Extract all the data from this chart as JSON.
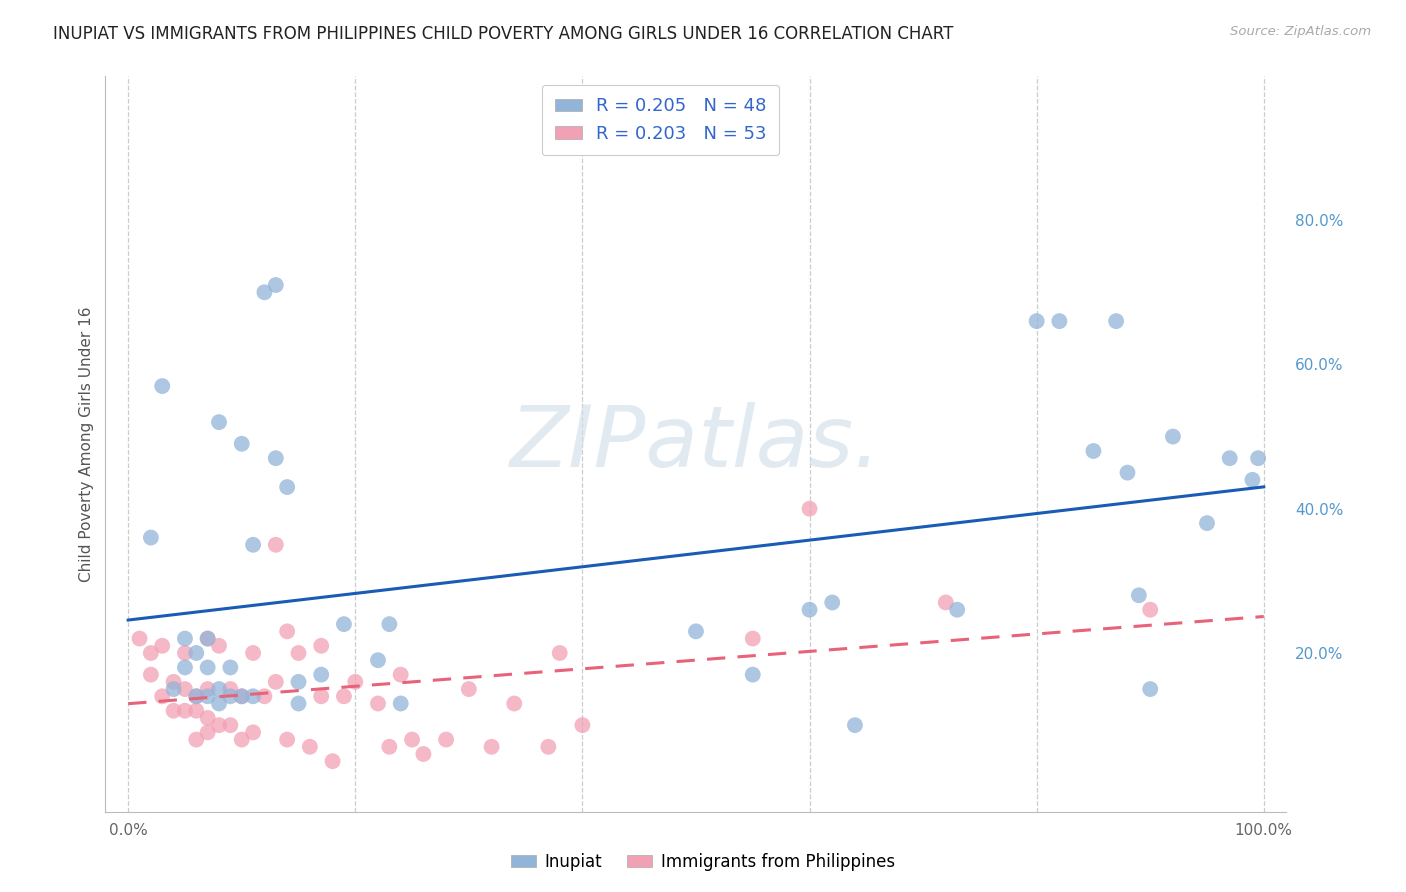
{
  "title": "INUPIAT VS IMMIGRANTS FROM PHILIPPINES CHILD POVERTY AMONG GIRLS UNDER 16 CORRELATION CHART",
  "source": "Source: ZipAtlas.com",
  "ylabel": "Child Poverty Among Girls Under 16",
  "xlim": [
    -0.02,
    1.02
  ],
  "ylim": [
    -0.02,
    1.0
  ],
  "xticks": [
    0.0,
    0.2,
    0.4,
    0.6,
    0.8,
    1.0
  ],
  "yticks": [],
  "xticklabels": [
    "0.0%",
    "",
    "",
    "",
    "",
    "100.0%"
  ],
  "right_yticks": [
    0.2,
    0.4,
    0.6,
    0.8
  ],
  "right_yticklabels": [
    "20.0%",
    "40.0%",
    "60.0%",
    "80.0%"
  ],
  "inupiat_color": "#92B4D8",
  "philippines_color": "#F2A0B4",
  "inupiat_R": "0.205",
  "inupiat_N": "48",
  "philippines_R": "0.203",
  "philippines_N": "53",
  "inupiat_line_color": "#1A5BB5",
  "philippines_line_color": "#E8637A",
  "background_color": "#FFFFFF",
  "grid_color": "#CCCCCC",
  "watermark_text": "ZIPatlas.",
  "legend_labels": [
    "Inupiat",
    "Immigrants from Philippines"
  ],
  "inupiat_x": [
    0.02,
    0.03,
    0.04,
    0.05,
    0.05,
    0.06,
    0.06,
    0.07,
    0.07,
    0.07,
    0.08,
    0.08,
    0.08,
    0.09,
    0.09,
    0.1,
    0.1,
    0.11,
    0.11,
    0.12,
    0.13,
    0.13,
    0.14,
    0.15,
    0.15,
    0.17,
    0.19,
    0.22,
    0.23,
    0.24,
    0.5,
    0.55,
    0.6,
    0.62,
    0.64,
    0.73,
    0.8,
    0.82,
    0.85,
    0.87,
    0.88,
    0.89,
    0.9,
    0.92,
    0.95,
    0.97,
    0.99,
    0.995
  ],
  "inupiat_y": [
    0.36,
    0.57,
    0.15,
    0.18,
    0.22,
    0.14,
    0.2,
    0.14,
    0.22,
    0.18,
    0.13,
    0.15,
    0.52,
    0.18,
    0.14,
    0.14,
    0.49,
    0.14,
    0.35,
    0.7,
    0.71,
    0.47,
    0.43,
    0.13,
    0.16,
    0.17,
    0.24,
    0.19,
    0.24,
    0.13,
    0.23,
    0.17,
    0.26,
    0.27,
    0.1,
    0.26,
    0.66,
    0.66,
    0.48,
    0.66,
    0.45,
    0.28,
    0.15,
    0.5,
    0.38,
    0.47,
    0.44,
    0.47
  ],
  "philippines_x": [
    0.01,
    0.02,
    0.02,
    0.03,
    0.03,
    0.04,
    0.04,
    0.05,
    0.05,
    0.05,
    0.06,
    0.06,
    0.06,
    0.07,
    0.07,
    0.07,
    0.07,
    0.08,
    0.08,
    0.09,
    0.09,
    0.1,
    0.1,
    0.11,
    0.11,
    0.12,
    0.13,
    0.13,
    0.14,
    0.14,
    0.15,
    0.16,
    0.17,
    0.17,
    0.18,
    0.19,
    0.2,
    0.22,
    0.23,
    0.24,
    0.25,
    0.26,
    0.28,
    0.3,
    0.32,
    0.34,
    0.37,
    0.38,
    0.4,
    0.55,
    0.6,
    0.72,
    0.9
  ],
  "philippines_y": [
    0.22,
    0.2,
    0.17,
    0.21,
    0.14,
    0.16,
    0.12,
    0.2,
    0.12,
    0.15,
    0.12,
    0.08,
    0.14,
    0.22,
    0.11,
    0.15,
    0.09,
    0.21,
    0.1,
    0.15,
    0.1,
    0.08,
    0.14,
    0.2,
    0.09,
    0.14,
    0.16,
    0.35,
    0.23,
    0.08,
    0.2,
    0.07,
    0.21,
    0.14,
    0.05,
    0.14,
    0.16,
    0.13,
    0.07,
    0.17,
    0.08,
    0.06,
    0.08,
    0.15,
    0.07,
    0.13,
    0.07,
    0.2,
    0.1,
    0.22,
    0.4,
    0.27,
    0.26
  ]
}
